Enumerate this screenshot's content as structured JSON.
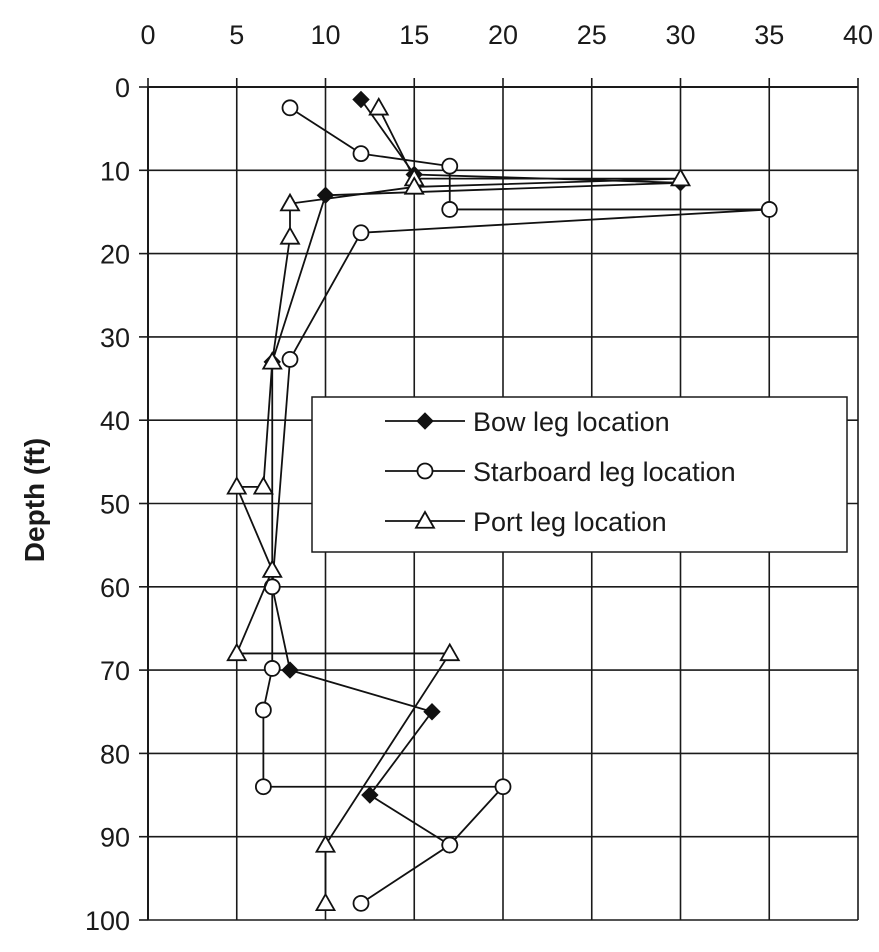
{
  "chart_data": {
    "type": "line",
    "title": "",
    "xlabel": "",
    "ylabel": "Depth (ft)",
    "xlim": [
      0,
      40
    ],
    "ylim": [
      0,
      100
    ],
    "x_axis_position": "top",
    "y_inverted": true,
    "grid": true,
    "x_ticks": [
      0,
      5,
      10,
      15,
      20,
      25,
      30,
      35,
      40
    ],
    "y_ticks": [
      0,
      10,
      20,
      30,
      40,
      50,
      60,
      70,
      80,
      90,
      100
    ],
    "legend_position": "center-right",
    "series": [
      {
        "name": "Bow  leg location",
        "marker": "filled-diamond",
        "color": "#111111",
        "points": [
          [
            12,
            1.5
          ],
          [
            15,
            10.5
          ],
          [
            30,
            11.5
          ],
          [
            10,
            13
          ],
          [
            7,
            33
          ],
          [
            7,
            60
          ],
          [
            8,
            70
          ],
          [
            16,
            75
          ],
          [
            12.5,
            85
          ],
          [
            17,
            91
          ]
        ]
      },
      {
        "name": "Starboard leg location",
        "marker": "open-circle",
        "color": "#111111",
        "points": [
          [
            8,
            2.5
          ],
          [
            12,
            8
          ],
          [
            17,
            9.5
          ],
          [
            17,
            14.7
          ],
          [
            35,
            14.7
          ],
          [
            12,
            17.5
          ],
          [
            8,
            32.7
          ],
          [
            7,
            60
          ],
          [
            7,
            69.8
          ],
          [
            6.5,
            74.8
          ],
          [
            6.5,
            84
          ],
          [
            20,
            84
          ],
          [
            17,
            91
          ],
          [
            12,
            98
          ]
        ]
      },
      {
        "name": "Port leg location",
        "marker": "open-triangle",
        "color": "#111111",
        "points": [
          [
            13,
            2.5
          ],
          [
            15,
            11
          ],
          [
            30,
            11
          ],
          [
            15,
            12
          ],
          [
            8,
            14
          ],
          [
            8,
            18
          ],
          [
            7,
            33
          ],
          [
            6.5,
            48
          ],
          [
            5,
            48
          ],
          [
            7,
            58
          ],
          [
            5,
            68
          ],
          [
            17,
            68
          ],
          [
            10,
            91
          ],
          [
            10,
            98
          ]
        ]
      }
    ]
  }
}
